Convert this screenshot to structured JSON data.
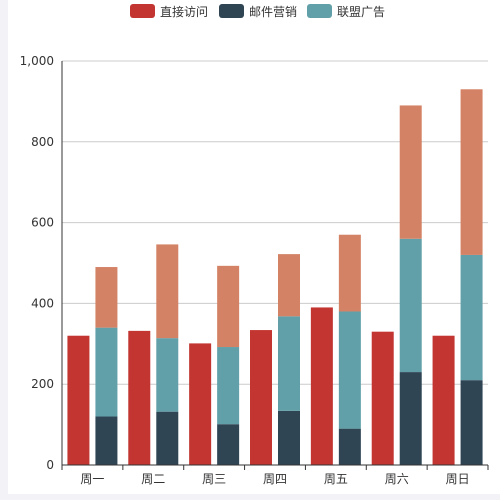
{
  "chart_data": {
    "type": "bar",
    "stacking": "partial",
    "categories": [
      "周一",
      "周二",
      "周三",
      "周四",
      "周五",
      "周六",
      "周日"
    ],
    "series": [
      {
        "name": "直接访问",
        "color": "#c23531",
        "stack": null,
        "values": [
          320,
          332,
          301,
          334,
          390,
          330,
          320
        ]
      },
      {
        "name": "邮件营销",
        "color": "#2f4554",
        "stack": "广告",
        "values": [
          120,
          132,
          101,
          134,
          90,
          230,
          210
        ]
      },
      {
        "name": "联盟广告",
        "color": "#61a0a8",
        "stack": "广告",
        "values": [
          220,
          182,
          191,
          234,
          290,
          330,
          310
        ]
      },
      {
        "name": "",
        "color": "#d48265",
        "stack": "广告",
        "values": [
          150,
          232,
          201,
          154,
          190,
          330,
          410
        ]
      }
    ],
    "ylim": [
      0,
      1000
    ],
    "yticks": [
      "0",
      "200",
      "400",
      "600",
      "800",
      "1,000"
    ],
    "grid": true,
    "legend_position": "top-center",
    "xlabel": "",
    "ylabel": "",
    "title": ""
  }
}
